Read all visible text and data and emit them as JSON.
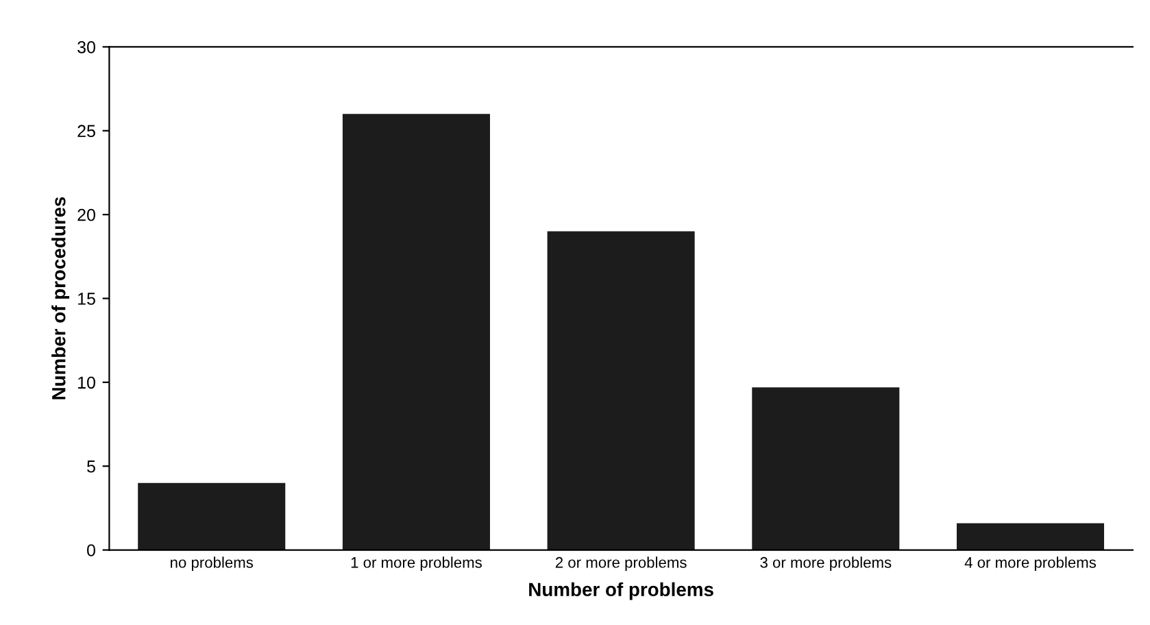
{
  "chart_data": {
    "type": "bar",
    "xlabel": "Number of problems",
    "ylabel": "Number of procedures",
    "categories": [
      "no problems",
      "1 or more problems",
      "2 or more problems",
      "3 or more problems",
      "4 or more problems"
    ],
    "values": [
      4,
      26,
      19,
      9.7,
      1.6
    ],
    "color": "#1c1c1c",
    "ylim": [
      0,
      30
    ],
    "yticks": [
      0,
      5,
      10,
      15,
      20,
      25,
      30
    ],
    "grid": false,
    "legend": false
  }
}
